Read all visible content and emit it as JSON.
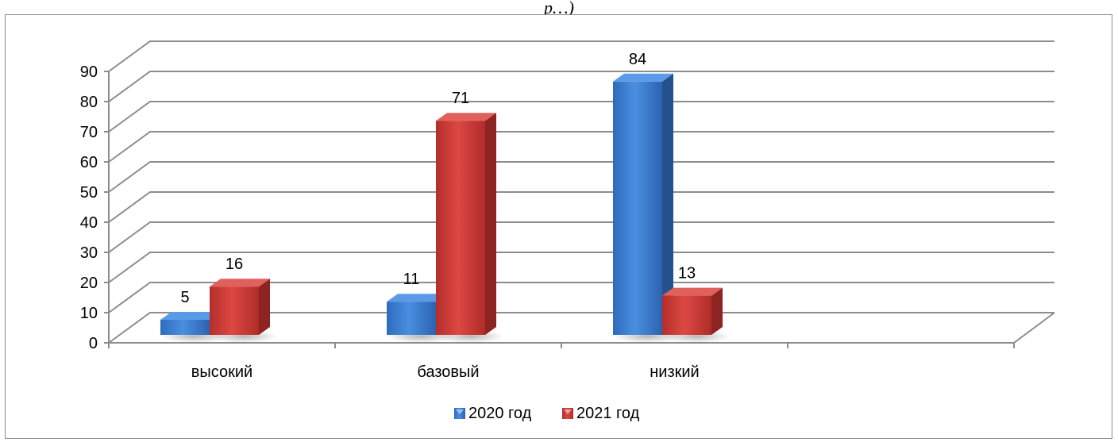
{
  "page_title": "р…)",
  "chart_data": {
    "type": "bar",
    "title": "",
    "xlabel": "",
    "ylabel": "",
    "ylim": [
      0,
      90
    ],
    "yticks": [
      0,
      10,
      20,
      30,
      40,
      50,
      60,
      70,
      80,
      90
    ],
    "grid": true,
    "three_d": true,
    "legend_position": "bottom",
    "categories": [
      "высокий",
      "базовый",
      "низкий"
    ],
    "series": [
      {
        "name": "2020 год",
        "values": [
          5,
          11,
          84
        ],
        "color": "#3c7dd0"
      },
      {
        "name": "2021 год",
        "values": [
          16,
          71,
          13
        ],
        "color": "#cc3a36"
      }
    ]
  }
}
